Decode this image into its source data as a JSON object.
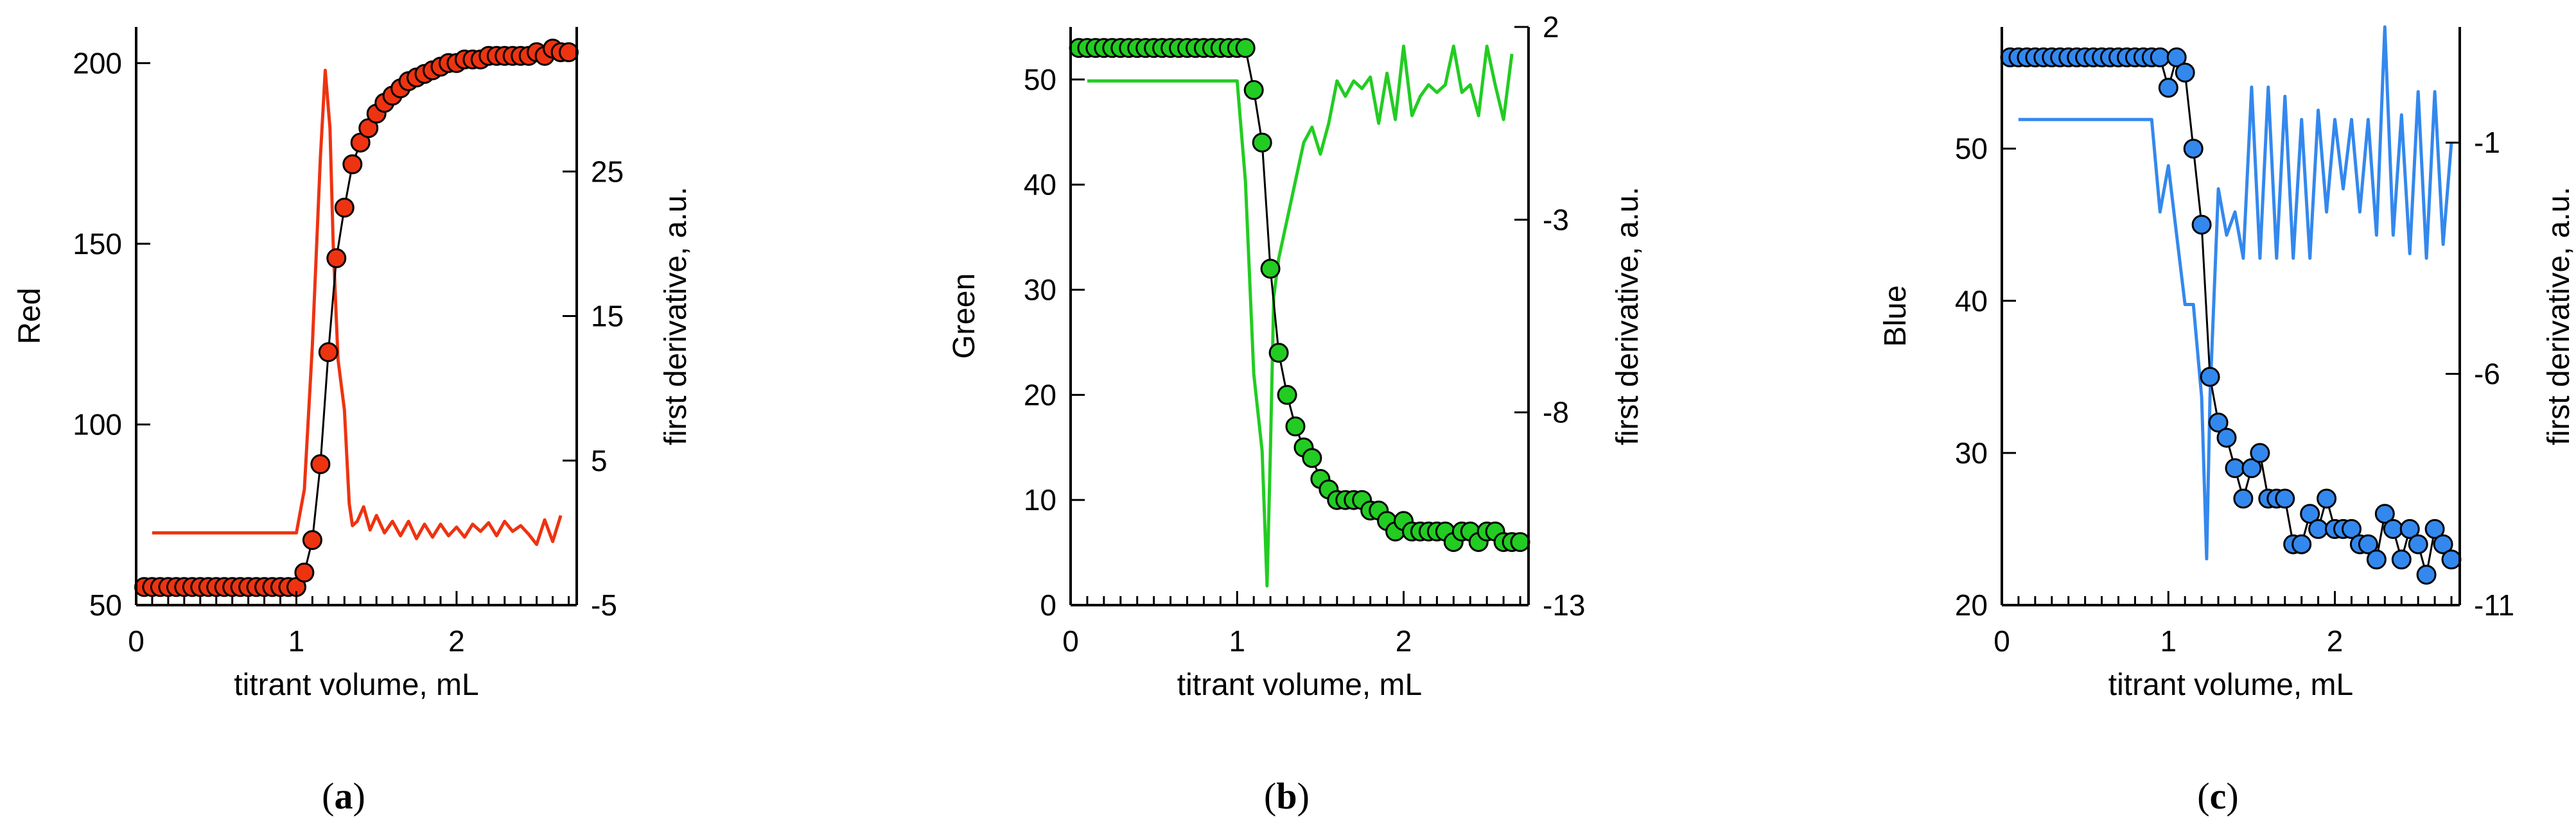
{
  "chart_data": [
    {
      "type": "scatter",
      "panel_label": "a",
      "color": "#ee3311",
      "xlabel": "titrant volume, mL",
      "ylabel": "Red",
      "y2label": "first derivative, a.u.",
      "xlim": [
        0,
        2.75
      ],
      "ylim": [
        50,
        210
      ],
      "y2lim": [
        -5,
        35
      ],
      "xticks": [
        0,
        1,
        2
      ],
      "yticks": [
        50,
        100,
        150,
        200
      ],
      "y2ticks": [
        -5,
        5,
        15,
        25
      ],
      "series": [
        {
          "name": "Red",
          "kind": "markers+line",
          "x": [
            0.05,
            0.1,
            0.15,
            0.2,
            0.25,
            0.3,
            0.35,
            0.4,
            0.45,
            0.5,
            0.55,
            0.6,
            0.65,
            0.7,
            0.75,
            0.8,
            0.85,
            0.9,
            0.95,
            1.0,
            1.05,
            1.1,
            1.15,
            1.2,
            1.25,
            1.3,
            1.35,
            1.4,
            1.45,
            1.5,
            1.55,
            1.6,
            1.65,
            1.7,
            1.75,
            1.8,
            1.85,
            1.9,
            1.95,
            2.0,
            2.05,
            2.1,
            2.15,
            2.2,
            2.25,
            2.3,
            2.35,
            2.4,
            2.45,
            2.5,
            2.55,
            2.6,
            2.65,
            2.7
          ],
          "y": [
            55,
            55,
            55,
            55,
            55,
            55,
            55,
            55,
            55,
            55,
            55,
            55,
            55,
            55,
            55,
            55,
            55,
            55,
            55,
            55,
            59,
            68,
            89,
            120,
            146,
            160,
            172,
            178,
            182,
            186,
            189,
            191,
            193,
            195,
            196,
            197,
            198,
            199,
            200,
            200,
            201,
            201,
            201,
            202,
            202,
            202,
            202,
            202,
            202,
            203,
            202,
            204,
            203,
            203
          ]
        },
        {
          "name": "first derivative",
          "kind": "line",
          "axis": "y2",
          "x": [
            0.1,
            0.5,
            1.0,
            1.05,
            1.1,
            1.15,
            1.18,
            1.21,
            1.23,
            1.26,
            1.3,
            1.33,
            1.35,
            1.38,
            1.42,
            1.46,
            1.5,
            1.55,
            1.6,
            1.65,
            1.7,
            1.75,
            1.8,
            1.85,
            1.9,
            1.95,
            2.0,
            2.05,
            2.1,
            2.15,
            2.2,
            2.25,
            2.3,
            2.35,
            2.4,
            2.45,
            2.5,
            2.55,
            2.6,
            2.65
          ],
          "y": [
            0,
            0,
            0,
            3,
            13,
            26,
            32,
            28,
            20,
            12,
            8.5,
            2,
            0.5,
            0.8,
            1.8,
            0.2,
            1.2,
            0,
            0.8,
            -0.2,
            0.8,
            -0.4,
            0.6,
            -0.3,
            0.6,
            -0.2,
            0.4,
            -0.3,
            0.6,
            0.1,
            0.7,
            -0.2,
            0.8,
            0.1,
            0.5,
            -0.1,
            -0.8,
            0.9,
            -0.6,
            1.2
          ]
        }
      ]
    },
    {
      "type": "scatter",
      "panel_label": "b",
      "color": "#22cc22",
      "xlabel": "titrant volume, mL",
      "ylabel": "Green",
      "y2label": "first derivative, a.u.",
      "xlim": [
        0,
        2.75
      ],
      "ylim": [
        0,
        55
      ],
      "y2lim": [
        -13,
        2
      ],
      "xticks": [
        0,
        1,
        2
      ],
      "yticks": [
        0,
        10,
        20,
        30,
        40,
        50
      ],
      "y2ticks": [
        -13,
        -8,
        -3,
        2
      ],
      "series": [
        {
          "name": "Green",
          "kind": "markers+line",
          "x": [
            0.05,
            0.1,
            0.15,
            0.2,
            0.25,
            0.3,
            0.35,
            0.4,
            0.45,
            0.5,
            0.55,
            0.6,
            0.65,
            0.7,
            0.75,
            0.8,
            0.85,
            0.9,
            0.95,
            1.0,
            1.05,
            1.1,
            1.15,
            1.2,
            1.25,
            1.3,
            1.35,
            1.4,
            1.45,
            1.5,
            1.55,
            1.6,
            1.65,
            1.7,
            1.75,
            1.8,
            1.85,
            1.9,
            1.95,
            2.0,
            2.05,
            2.1,
            2.15,
            2.2,
            2.25,
            2.3,
            2.35,
            2.4,
            2.45,
            2.5,
            2.55,
            2.6,
            2.65,
            2.7
          ],
          "y": [
            53,
            53,
            53,
            53,
            53,
            53,
            53,
            53,
            53,
            53,
            53,
            53,
            53,
            53,
            53,
            53,
            53,
            53,
            53,
            53,
            53,
            49,
            44,
            32,
            24,
            20,
            17,
            15,
            14,
            12,
            11,
            10,
            10,
            10,
            10,
            9,
            9,
            8,
            7,
            8,
            7,
            7,
            7,
            7,
            7,
            6,
            7,
            7,
            6,
            7,
            7,
            6,
            6,
            6
          ]
        },
        {
          "name": "first derivative",
          "kind": "line",
          "axis": "y2",
          "x": [
            0.1,
            0.5,
            1.0,
            1.05,
            1.1,
            1.15,
            1.18,
            1.2,
            1.22,
            1.25,
            1.3,
            1.35,
            1.4,
            1.45,
            1.5,
            1.55,
            1.6,
            1.65,
            1.7,
            1.75,
            1.8,
            1.85,
            1.9,
            1.95,
            2.0,
            2.05,
            2.1,
            2.15,
            2.2,
            2.25,
            2.3,
            2.35,
            2.4,
            2.45,
            2.5,
            2.55,
            2.6,
            2.65
          ],
          "y": [
            0.6,
            0.6,
            0.6,
            -2,
            -7,
            -9,
            -12.5,
            -9,
            -5,
            -4,
            -3,
            -2,
            -1,
            -0.6,
            -1.3,
            -0.5,
            0.6,
            0.2,
            0.6,
            0.4,
            0.7,
            -0.5,
            0.8,
            -0.4,
            1.5,
            -0.3,
            0.2,
            0.5,
            0.3,
            0.5,
            1.5,
            0.3,
            0.5,
            -0.3,
            1.5,
            0.5,
            -0.4,
            1.3
          ]
        }
      ]
    },
    {
      "type": "scatter",
      "panel_label": "c",
      "color": "#3388ee",
      "xlabel": "titrant volume, mL",
      "ylabel": "Blue",
      "y2label": "first derivative, a.u.",
      "xlim": [
        0,
        2.75
      ],
      "ylim": [
        20,
        58
      ],
      "y2lim": [
        -11,
        1.5
      ],
      "xticks": [
        0,
        1,
        2
      ],
      "yticks": [
        20,
        30,
        40,
        50
      ],
      "y2ticks": [
        -11,
        -6,
        -1
      ],
      "series": [
        {
          "name": "Blue",
          "kind": "markers+line",
          "x": [
            0.05,
            0.1,
            0.15,
            0.2,
            0.25,
            0.3,
            0.35,
            0.4,
            0.45,
            0.5,
            0.55,
            0.6,
            0.65,
            0.7,
            0.75,
            0.8,
            0.85,
            0.9,
            0.95,
            1.0,
            1.05,
            1.1,
            1.15,
            1.2,
            1.25,
            1.3,
            1.35,
            1.4,
            1.45,
            1.5,
            1.55,
            1.6,
            1.65,
            1.7,
            1.75,
            1.8,
            1.85,
            1.9,
            1.95,
            2.0,
            2.05,
            2.1,
            2.15,
            2.2,
            2.25,
            2.3,
            2.35,
            2.4,
            2.45,
            2.5,
            2.55,
            2.6,
            2.65,
            2.7
          ],
          "y": [
            56,
            56,
            56,
            56,
            56,
            56,
            56,
            56,
            56,
            56,
            56,
            56,
            56,
            56,
            56,
            56,
            56,
            56,
            56,
            54,
            56,
            55,
            50,
            45,
            35,
            32,
            31,
            29,
            27,
            29,
            30,
            27,
            27,
            27,
            24,
            24,
            26,
            25,
            27,
            25,
            25,
            25,
            24,
            24,
            23,
            26,
            25,
            23,
            25,
            24,
            22,
            25,
            24,
            23
          ]
        },
        {
          "name": "first derivative",
          "kind": "line",
          "axis": "y2",
          "x": [
            0.1,
            0.5,
            0.9,
            0.95,
            1.0,
            1.05,
            1.1,
            1.15,
            1.2,
            1.23,
            1.25,
            1.3,
            1.35,
            1.4,
            1.45,
            1.5,
            1.55,
            1.6,
            1.65,
            1.7,
            1.75,
            1.8,
            1.85,
            1.9,
            1.95,
            2.0,
            2.05,
            2.1,
            2.15,
            2.2,
            2.25,
            2.3,
            2.35,
            2.4,
            2.45,
            2.5,
            2.55,
            2.6,
            2.65,
            2.7
          ],
          "y": [
            -0.5,
            -0.5,
            -0.5,
            -2.5,
            -1.5,
            -3,
            -4.5,
            -4.5,
            -6.5,
            -10,
            -6.5,
            -2,
            -3,
            -2.5,
            -3.5,
            0.2,
            -3.5,
            0.2,
            -3.5,
            0,
            -3.5,
            -0.5,
            -3.5,
            -0.3,
            -2.5,
            -0.5,
            -2,
            -0.5,
            -2.5,
            -0.5,
            -3,
            1.5,
            -3,
            -0.4,
            -3.4,
            0.1,
            -3.5,
            0.1,
            -3.2,
            -1
          ]
        }
      ]
    }
  ]
}
